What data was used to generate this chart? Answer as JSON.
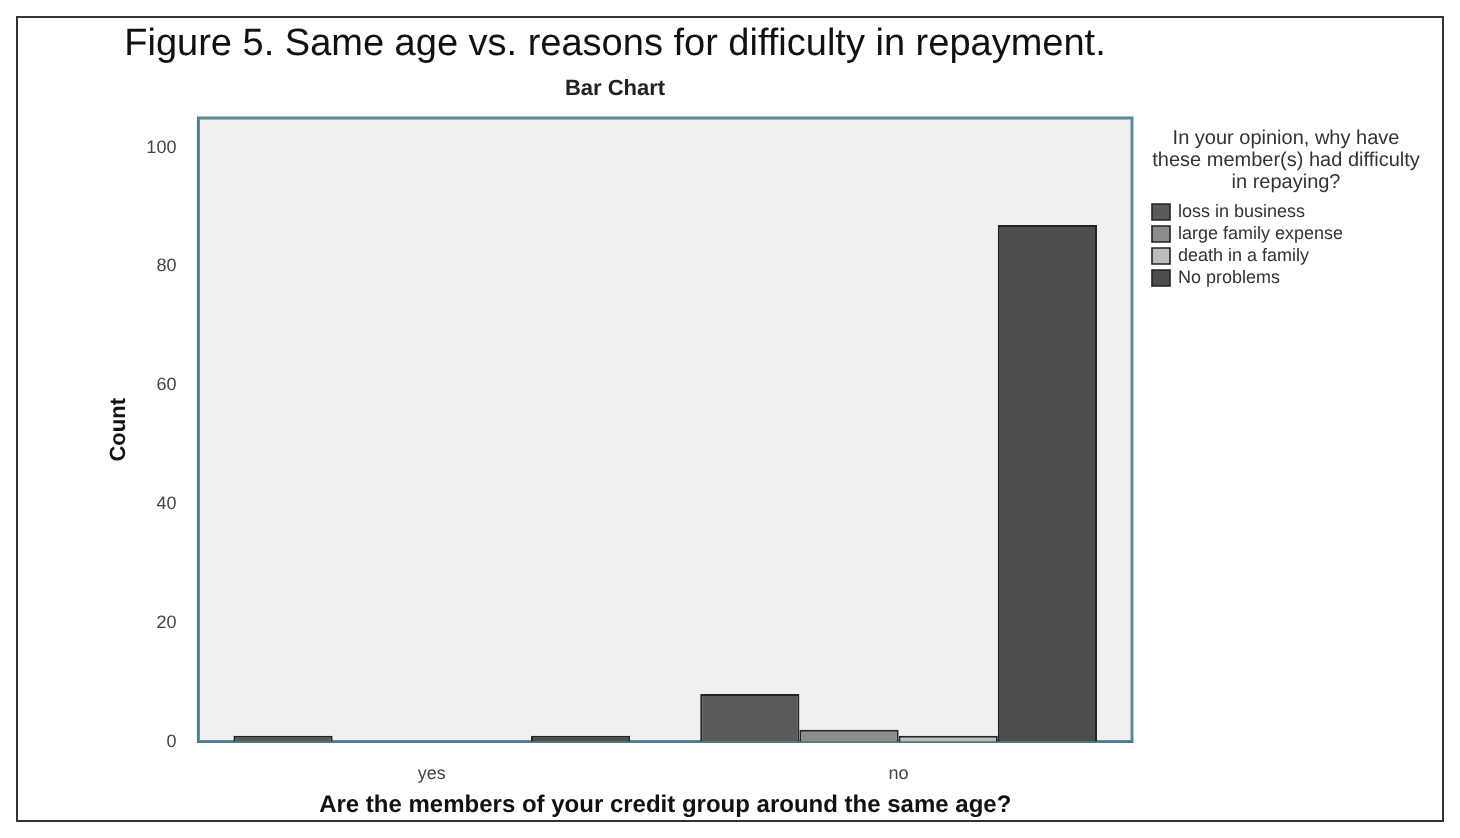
{
  "chart_data": {
    "type": "bar",
    "title": "Figure 5. Same age vs. reasons for difficulty in repayment.",
    "subtitle": "Bar Chart",
    "xlabel": "Are the members of your credit group around the same age?",
    "ylabel": "Count",
    "legend_title": "In your opinion, why have these member(s) had difficulty in repaying?",
    "categories": [
      "yes",
      "no"
    ],
    "series": [
      {
        "name": "loss in business",
        "color": "#5a5a5a",
        "values": [
          1,
          8
        ]
      },
      {
        "name": "large family expense",
        "color": "#8c8c8c",
        "values": [
          0,
          2
        ]
      },
      {
        "name": "death in a family",
        "color": "#bdbdbd",
        "values": [
          0,
          1
        ]
      },
      {
        "name": "No problems",
        "color": "#4d4d4d",
        "values": [
          1,
          87
        ]
      }
    ],
    "ylim": [
      0,
      105
    ],
    "yticks": [
      0,
      20,
      40,
      60,
      80,
      100
    ],
    "grid": false,
    "legend": "right"
  }
}
